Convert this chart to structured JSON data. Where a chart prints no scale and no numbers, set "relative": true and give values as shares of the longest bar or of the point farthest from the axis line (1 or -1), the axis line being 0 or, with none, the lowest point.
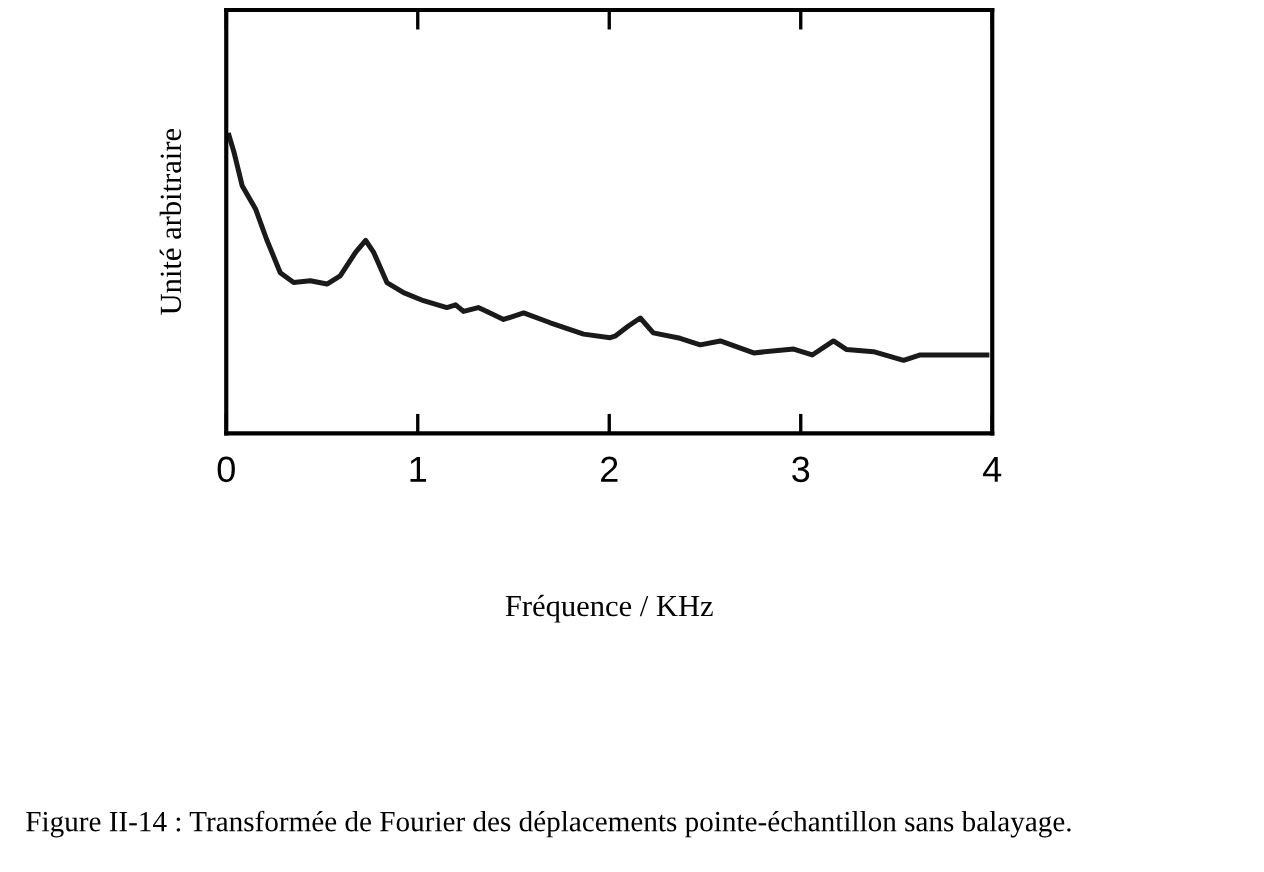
{
  "chart_data": {
    "type": "line",
    "relative": true,
    "xlabel": "Fréquence / KHz",
    "ylabel": "Unité arbitraire",
    "xlim": [
      0,
      4
    ],
    "xticks": [
      0,
      1,
      2,
      3,
      4
    ],
    "grid": false,
    "legend": false,
    "marker": "none",
    "line_style": "solid",
    "annotations": [
      "Figure II-14 : Transformée de Fourier des déplacements pointe-échantillon sans balayage."
    ],
    "series": [
      {
        "color": "#1a1a1a",
        "x": [
          0.014,
          0.04,
          0.083,
          0.153,
          0.21,
          0.282,
          0.352,
          0.439,
          0.526,
          0.595,
          0.675,
          0.728,
          0.77,
          0.839,
          0.926,
          1.03,
          1.152,
          1.198,
          1.239,
          1.316,
          1.361,
          1.448,
          1.553,
          1.692,
          1.866,
          2.005,
          2.03,
          2.1,
          2.162,
          2.23,
          2.37,
          2.475,
          2.58,
          2.754,
          2.963,
          3.06,
          3.171,
          3.24,
          3.38,
          3.537,
          3.624,
          3.972
        ],
        "values": [
          1.0,
          0.944,
          0.831,
          0.753,
          0.652,
          0.539,
          0.506,
          0.512,
          0.501,
          0.528,
          0.607,
          0.647,
          0.607,
          0.506,
          0.472,
          0.445,
          0.422,
          0.431,
          0.409,
          0.422,
          0.409,
          0.382,
          0.404,
          0.371,
          0.333,
          0.321,
          0.326,
          0.36,
          0.387,
          0.337,
          0.319,
          0.297,
          0.31,
          0.27,
          0.283,
          0.263,
          0.31,
          0.281,
          0.274,
          0.245,
          0.263,
          0.263
        ]
      }
    ]
  }
}
